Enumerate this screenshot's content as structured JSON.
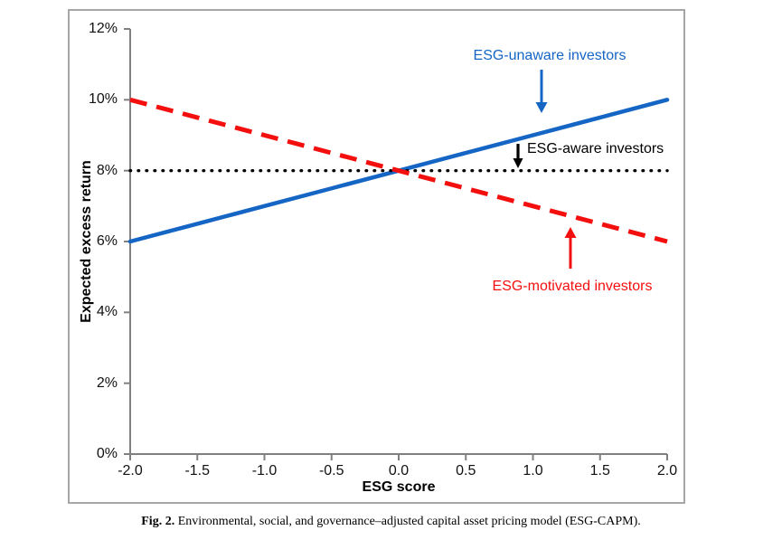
{
  "figure": {
    "caption_label": "Fig. 2.",
    "caption_text": "Environmental, social, and governance–adjusted capital asset pricing model (ESG-CAPM)."
  },
  "chart_data": {
    "type": "line",
    "title": "",
    "xlabel": "ESG score",
    "ylabel": "Expected excess return",
    "xlim": [
      -2,
      2
    ],
    "ylim": [
      0,
      12
    ],
    "grid": false,
    "legend_position": "none (inline text annotations with arrows)",
    "axis_color": "#808080",
    "x": [
      -2.0,
      -1.5,
      -1.0,
      -0.5,
      0.0,
      0.5,
      1.0,
      1.5,
      2.0
    ],
    "xtick_labels": [
      "-2.0",
      "-1.5",
      "-1.0",
      "-0.5",
      "0.0",
      "0.5",
      "1.0",
      "1.5",
      "2.0"
    ],
    "ytick_values": [
      0,
      2,
      4,
      6,
      8,
      10,
      12
    ],
    "ytick_labels": [
      "0%",
      "2%",
      "4%",
      "6%",
      "8%",
      "10%",
      "12%"
    ],
    "ytick_unit": "percent",
    "series": [
      {
        "name": "ESG-unaware investors",
        "color": "#1565c4",
        "style": "solid",
        "values": [
          6,
          6.5,
          7,
          7.5,
          8,
          8.5,
          9,
          9.5,
          10
        ]
      },
      {
        "name": "ESG-aware investors",
        "color": "#000000",
        "style": "dotted",
        "values": [
          8,
          8,
          8,
          8,
          8,
          8,
          8,
          8,
          8
        ]
      },
      {
        "name": "ESG-motivated investors",
        "color": "#f40f0f",
        "style": "dashed",
        "values": [
          10,
          9.5,
          9,
          8.5,
          8,
          7.5,
          7,
          6.5,
          6
        ]
      }
    ]
  },
  "annotations": [
    {
      "text": "ESG-unaware investors",
      "series": 0,
      "arrow": "down"
    },
    {
      "text": "ESG-aware investors",
      "series": 1,
      "arrow": "down"
    },
    {
      "text": "ESG-motivated investors",
      "series": 2,
      "arrow": "up"
    }
  ]
}
